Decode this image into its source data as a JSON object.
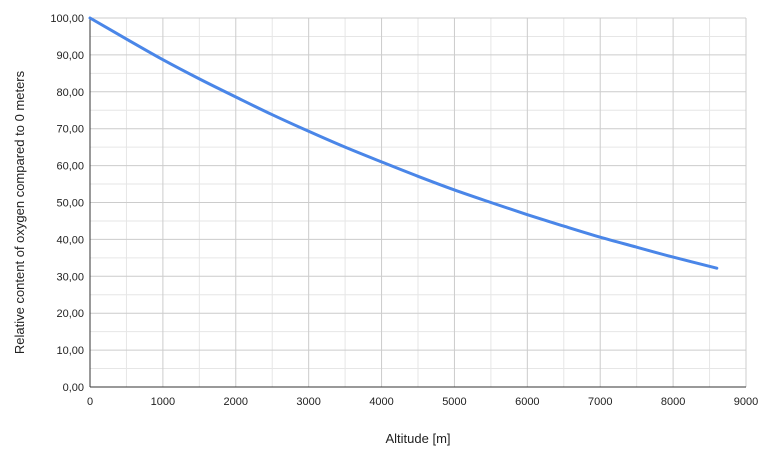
{
  "chart_data": {
    "type": "line",
    "title": "",
    "xlabel": "Altitude [m]",
    "ylabel": "Relative content of oxygen compared to 0 meters",
    "xlim": [
      0,
      9000
    ],
    "ylim": [
      0,
      100
    ],
    "x_ticks": [
      0,
      1000,
      2000,
      3000,
      4000,
      5000,
      6000,
      7000,
      8000,
      9000
    ],
    "x_tick_labels": [
      "0",
      "1000",
      "2000",
      "3000",
      "4000",
      "5000",
      "6000",
      "7000",
      "8000",
      "9000"
    ],
    "y_ticks": [
      0,
      10,
      20,
      30,
      40,
      50,
      60,
      70,
      80,
      90,
      100
    ],
    "y_tick_labels": [
      "0,00",
      "10,00",
      "20,00",
      "30,00",
      "40,00",
      "50,00",
      "60,00",
      "70,00",
      "80,00",
      "90,00",
      "100,00"
    ],
    "grid": true,
    "minor_grid": true,
    "legend": "none",
    "colors": {
      "line": "#4a86e8",
      "grid": "#cccccc",
      "minor_grid": "#e6e6e6",
      "axis": "#333333"
    },
    "series": [
      {
        "x": [
          0,
          500,
          1000,
          1500,
          2000,
          2500,
          3000,
          3500,
          4000,
          4500,
          5000,
          5500,
          6000,
          6500,
          7000,
          7500,
          8000,
          8600
        ],
        "values": [
          100,
          94.3,
          88.7,
          83.5,
          78.6,
          73.8,
          69.3,
          65.0,
          61.0,
          57.1,
          53.4,
          50.0,
          46.7,
          43.6,
          40.6,
          37.9,
          35.2,
          32.2
        ]
      }
    ]
  }
}
